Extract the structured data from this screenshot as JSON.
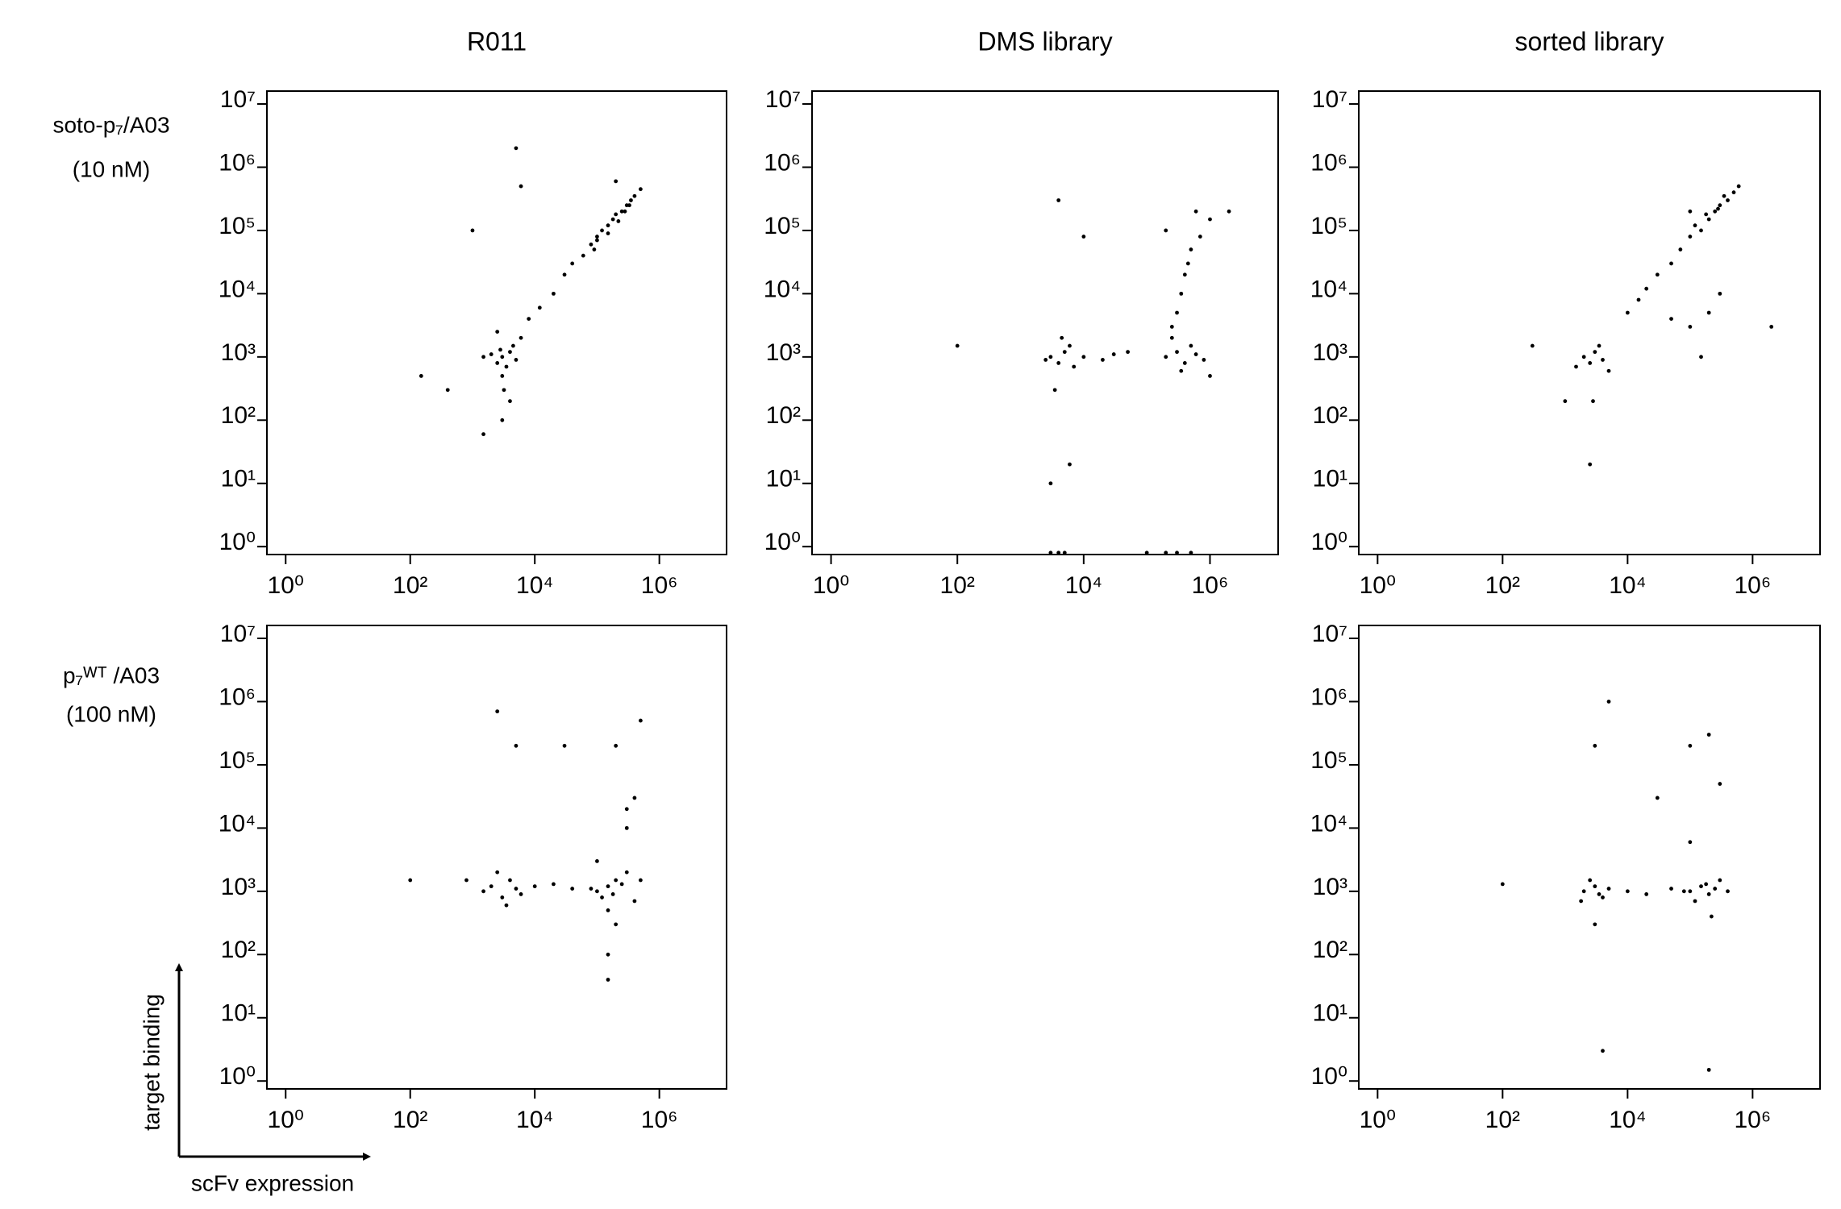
{
  "column_titles": [
    "R011",
    "DMS library",
    "sorted library"
  ],
  "row_labels": [
    [
      "soto-p₇/A03",
      "(10 nM)"
    ],
    [
      "p₇ᵂᵀ /A03",
      "(100 nM)"
    ]
  ],
  "axis_labels": {
    "y": "target binding",
    "x": "scFv expression"
  },
  "chart_data": [
    {
      "type": "scatter",
      "xscale": "log",
      "yscale": "log",
      "color": "#000000",
      "xlim": [
        0.5,
        12000000
      ],
      "ylim": [
        0.75,
        16000000
      ],
      "xticks": [
        {
          "value": 1,
          "label": "10⁰"
        },
        {
          "value": 100,
          "label": "10²"
        },
        {
          "value": 10000,
          "label": "10⁴"
        },
        {
          "value": 1000000,
          "label": "10⁶"
        }
      ],
      "yticks": [
        {
          "value": 1,
          "label": "10⁰"
        },
        {
          "value": 10,
          "label": "10¹"
        },
        {
          "value": 100,
          "label": "10²"
        },
        {
          "value": 1000,
          "label": "10³"
        },
        {
          "value": 10000,
          "label": "10⁴"
        },
        {
          "value": 100000,
          "label": "10⁵"
        },
        {
          "value": 1000000,
          "label": "10⁶"
        },
        {
          "value": 10000000,
          "label": "10⁷"
        }
      ],
      "x": [
        3000,
        2500,
        4000,
        3500,
        2000,
        5000,
        3000,
        4500,
        2800,
        3200,
        1500,
        6000,
        4000,
        3000,
        2500,
        8000,
        12000,
        20000,
        30000,
        40000,
        60000,
        80000,
        100000,
        120000,
        150000,
        180000,
        200000,
        250000,
        300000,
        350000,
        400000,
        500000,
        150000,
        220000,
        280000,
        330000,
        100000,
        90000,
        400,
        150,
        200000,
        5000,
        1000,
        6000,
        1500
      ],
      "y": [
        1000,
        800,
        1200,
        700,
        1100,
        900,
        500,
        1500,
        1300,
        300,
        1000,
        2000,
        200,
        100,
        2500,
        4000,
        6000,
        10000,
        20000,
        30000,
        40000,
        60000,
        80000,
        100000,
        120000,
        150000,
        180000,
        200000,
        250000,
        300000,
        350000,
        450000,
        90000,
        140000,
        200000,
        250000,
        70000,
        50000,
        300,
        500,
        600000,
        2000000,
        100000,
        500000,
        60
      ]
    },
    {
      "type": "scatter",
      "xscale": "log",
      "yscale": "log",
      "color": "#000000",
      "xlim": [
        0.5,
        12000000
      ],
      "ylim": [
        0.75,
        16000000
      ],
      "xticks": [
        {
          "value": 1,
          "label": "10⁰"
        },
        {
          "value": 100,
          "label": "10²"
        },
        {
          "value": 10000,
          "label": "10⁴"
        },
        {
          "value": 1000000,
          "label": "10⁶"
        }
      ],
      "yticks": [
        {
          "value": 1,
          "label": "10⁰"
        },
        {
          "value": 10,
          "label": "10¹"
        },
        {
          "value": 100,
          "label": "10²"
        },
        {
          "value": 1000,
          "label": "10³"
        },
        {
          "value": 10000,
          "label": "10⁴"
        },
        {
          "value": 100000,
          "label": "10⁵"
        },
        {
          "value": 1000000,
          "label": "10⁶"
        },
        {
          "value": 10000000,
          "label": "10⁷"
        }
      ],
      "x": [
        3000,
        5000,
        4000,
        6000,
        2500,
        7000,
        3500,
        4500,
        200000,
        300000,
        400000,
        500000,
        250000,
        350000,
        600000,
        800000,
        300000,
        400000,
        500000,
        200000,
        600000,
        350000,
        450000,
        250000,
        700000,
        1000000,
        10000,
        20000,
        30000,
        50000,
        3000,
        4000,
        5000,
        3000,
        6000,
        4000,
        100000,
        200000,
        300000,
        500000,
        100,
        10000,
        1000000,
        2000000
      ],
      "y": [
        1000,
        1200,
        800,
        1500,
        900,
        700,
        300,
        2000,
        1000,
        1200,
        800,
        1500,
        2000,
        600,
        1100,
        900,
        5000,
        20000,
        50000,
        100000,
        200000,
        10000,
        30000,
        3000,
        80000,
        150000,
        1000,
        900,
        1100,
        1200,
        0.8,
        0.8,
        0.8,
        10,
        20,
        300000,
        0.8,
        0.8,
        0.8,
        0.8,
        1500,
        80000,
        500,
        200000
      ]
    },
    {
      "type": "scatter",
      "xscale": "log",
      "yscale": "log",
      "color": "#000000",
      "xlim": [
        0.5,
        12000000
      ],
      "ylim": [
        0.75,
        16000000
      ],
      "xticks": [
        {
          "value": 1,
          "label": "10⁰"
        },
        {
          "value": 100,
          "label": "10²"
        },
        {
          "value": 10000,
          "label": "10⁴"
        },
        {
          "value": 1000000,
          "label": "10⁶"
        }
      ],
      "yticks": [
        {
          "value": 1,
          "label": "10⁰"
        },
        {
          "value": 10,
          "label": "10¹"
        },
        {
          "value": 100,
          "label": "10²"
        },
        {
          "value": 1000,
          "label": "10³"
        },
        {
          "value": 10000,
          "label": "10⁴"
        },
        {
          "value": 100000,
          "label": "10⁵"
        },
        {
          "value": 1000000,
          "label": "10⁶"
        },
        {
          "value": 10000000,
          "label": "10⁷"
        }
      ],
      "x": [
        2000,
        3000,
        2500,
        4000,
        3500,
        1500,
        5000,
        2800,
        10000,
        15000,
        20000,
        30000,
        50000,
        70000,
        100000,
        150000,
        200000,
        250000,
        300000,
        400000,
        500000,
        600000,
        120000,
        180000,
        280000,
        350000,
        100000,
        200000,
        300000,
        50000,
        150000,
        300,
        1000,
        2000000,
        2500,
        100000
      ],
      "y": [
        1000,
        1200,
        800,
        900,
        1500,
        700,
        600,
        200,
        5000,
        8000,
        12000,
        20000,
        30000,
        50000,
        80000,
        100000,
        150000,
        200000,
        250000,
        300000,
        400000,
        500000,
        120000,
        180000,
        220000,
        350000,
        3000,
        5000,
        10000,
        4000,
        1000,
        1500,
        200,
        3000,
        20,
        200000
      ]
    },
    {
      "type": "scatter",
      "xscale": "log",
      "yscale": "log",
      "color": "#000000",
      "xlim": [
        0.5,
        12000000
      ],
      "ylim": [
        0.75,
        16000000
      ],
      "xticks": [
        {
          "value": 1,
          "label": "10⁰"
        },
        {
          "value": 100,
          "label": "10²"
        },
        {
          "value": 10000,
          "label": "10⁴"
        },
        {
          "value": 1000000,
          "label": "10⁶"
        }
      ],
      "yticks": [
        {
          "value": 1,
          "label": "10⁰"
        },
        {
          "value": 10,
          "label": "10¹"
        },
        {
          "value": 100,
          "label": "10²"
        },
        {
          "value": 1000,
          "label": "10³"
        },
        {
          "value": 10000,
          "label": "10⁴"
        },
        {
          "value": 100000,
          "label": "10⁵"
        },
        {
          "value": 1000000,
          "label": "10⁶"
        },
        {
          "value": 10000000,
          "label": "10⁷"
        }
      ],
      "x": [
        1500,
        2000,
        3000,
        4000,
        5000,
        2500,
        3500,
        800,
        6000,
        10000,
        20000,
        40000,
        100000,
        150000,
        200000,
        120000,
        180000,
        250000,
        300000,
        80000,
        400000,
        500000,
        150000,
        200000,
        100000,
        300000,
        400000,
        150000,
        100,
        2500,
        5000,
        30000,
        150000,
        200000,
        300000,
        500000
      ],
      "y": [
        1000,
        1200,
        800,
        1500,
        1100,
        2000,
        600,
        1500,
        900,
        1200,
        1300,
        1100,
        1000,
        1200,
        1500,
        800,
        900,
        1300,
        2000,
        1100,
        700,
        1500,
        500,
        300,
        3000,
        10000,
        30000,
        100,
        1500,
        700000,
        200000,
        200000,
        40,
        200000,
        20000,
        500000
      ]
    },
    {
      "type": "scatter",
      "xscale": "log",
      "yscale": "log",
      "color": "#000000",
      "xlim": [
        0.5,
        12000000
      ],
      "ylim": [
        0.75,
        16000000
      ],
      "xticks": [
        {
          "value": 1,
          "label": "10⁰"
        },
        {
          "value": 100,
          "label": "10²"
        },
        {
          "value": 10000,
          "label": "10⁴"
        },
        {
          "value": 1000000,
          "label": "10⁶"
        }
      ],
      "yticks": [
        {
          "value": 1,
          "label": "10⁰"
        },
        {
          "value": 10,
          "label": "10¹"
        },
        {
          "value": 100,
          "label": "10²"
        },
        {
          "value": 1000,
          "label": "10³"
        },
        {
          "value": 10000,
          "label": "10⁴"
        },
        {
          "value": 100000,
          "label": "10⁵"
        },
        {
          "value": 1000000,
          "label": "10⁶"
        },
        {
          "value": 10000000,
          "label": "10⁷"
        }
      ],
      "x": [
        2000,
        3000,
        4000,
        2500,
        3500,
        5000,
        1800,
        3000,
        100000,
        150000,
        200000,
        250000,
        300000,
        120000,
        180000,
        400000,
        220000,
        80000,
        10000,
        20000,
        50000,
        100,
        30000,
        3000,
        100000,
        200000,
        300000,
        4000,
        5000,
        100000,
        200000
      ],
      "y": [
        1000,
        1200,
        800,
        1500,
        900,
        1100,
        700,
        300,
        1000,
        1200,
        900,
        1100,
        1500,
        700,
        1300,
        1000,
        400,
        1000,
        1000,
        900,
        1100,
        1300,
        30000,
        200000,
        200000,
        300000,
        50000,
        3,
        1000000,
        6000,
        1.5
      ]
    }
  ]
}
